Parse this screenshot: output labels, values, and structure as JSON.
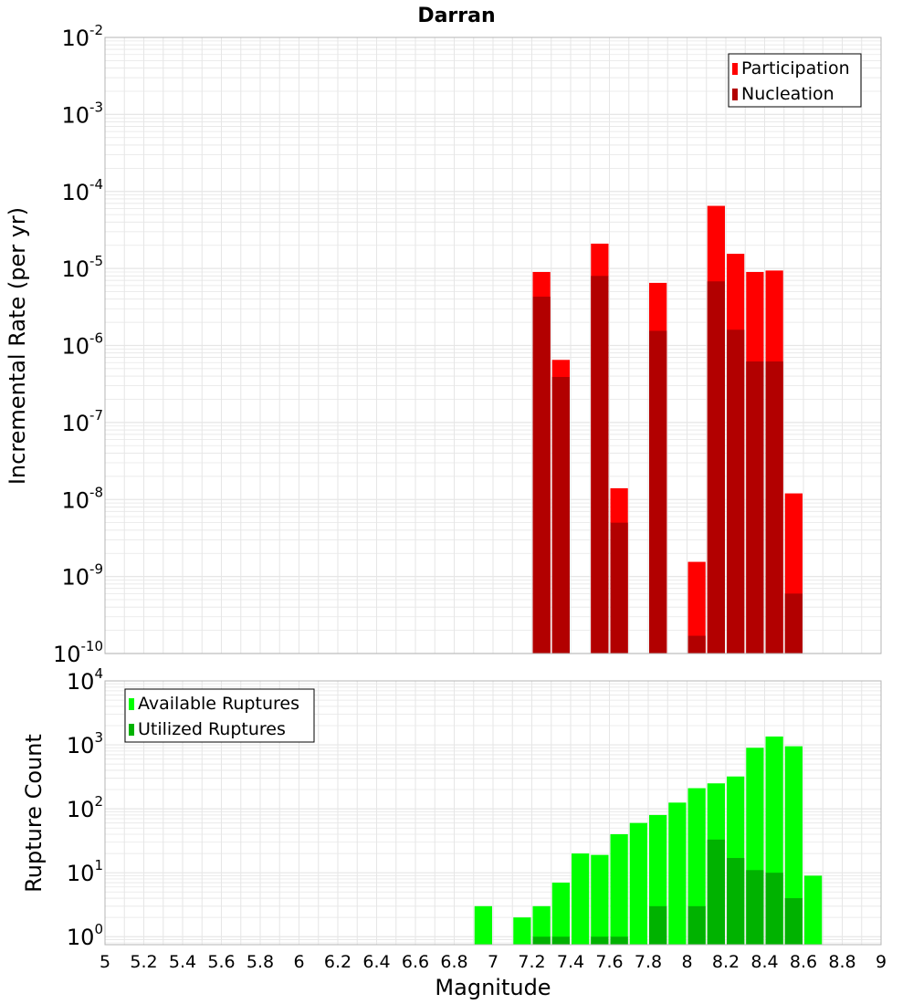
{
  "chart_data": [
    {
      "type": "bar",
      "title": "Darran",
      "ylabel": "Incremental Rate (per yr)",
      "xlabel": "",
      "yscale": "log",
      "ylim": [
        1e-10,
        0.01
      ],
      "xlim": [
        5,
        9
      ],
      "grid": true,
      "legend_position": "top-right",
      "bin_width": 0.1,
      "series": [
        {
          "name": "Participation",
          "color": "#ff0000",
          "points": [
            {
              "x": 7.25,
              "y": 9e-06
            },
            {
              "x": 7.35,
              "y": 6.5e-07
            },
            {
              "x": 7.55,
              "y": 2.1e-05
            },
            {
              "x": 7.65,
              "y": 1.4e-08
            },
            {
              "x": 7.85,
              "y": 6.5e-06
            },
            {
              "x": 8.05,
              "y": 1.55e-09
            },
            {
              "x": 8.15,
              "y": 6.5e-05
            },
            {
              "x": 8.25,
              "y": 1.55e-05
            },
            {
              "x": 8.35,
              "y": 9e-06
            },
            {
              "x": 8.45,
              "y": 9.4e-06
            },
            {
              "x": 8.55,
              "y": 1.2e-08
            }
          ]
        },
        {
          "name": "Nucleation",
          "color": "#b20000",
          "points": [
            {
              "x": 7.25,
              "y": 4.3e-06
            },
            {
              "x": 7.35,
              "y": 3.9e-07
            },
            {
              "x": 7.55,
              "y": 8e-06
            },
            {
              "x": 7.65,
              "y": 5e-09
            },
            {
              "x": 7.85,
              "y": 1.55e-06
            },
            {
              "x": 8.05,
              "y": 1.7e-10
            },
            {
              "x": 8.15,
              "y": 6.8e-06
            },
            {
              "x": 8.25,
              "y": 1.6e-06
            },
            {
              "x": 8.35,
              "y": 6.2e-07
            },
            {
              "x": 8.45,
              "y": 6.2e-07
            },
            {
              "x": 8.55,
              "y": 6e-10
            }
          ]
        }
      ],
      "y_ticks": [
        {
          "base": "10",
          "exp": "-2"
        },
        {
          "base": "10",
          "exp": "-3"
        },
        {
          "base": "10",
          "exp": "-4"
        },
        {
          "base": "10",
          "exp": "-5"
        },
        {
          "base": "10",
          "exp": "-6"
        },
        {
          "base": "10",
          "exp": "-7"
        },
        {
          "base": "10",
          "exp": "-8"
        },
        {
          "base": "10",
          "exp": "-9"
        },
        {
          "base": "10",
          "exp": "-10"
        }
      ]
    },
    {
      "type": "bar",
      "title": "",
      "ylabel": "Rupture Count",
      "xlabel": "Magnitude",
      "yscale": "log",
      "ylim": [
        0.75,
        10000
      ],
      "xlim": [
        5,
        9
      ],
      "grid": true,
      "legend_position": "top-left",
      "bin_width": 0.1,
      "series": [
        {
          "name": "Available Ruptures",
          "color": "#00ff00",
          "points": [
            {
              "x": 6.95,
              "y": 3
            },
            {
              "x": 7.15,
              "y": 2
            },
            {
              "x": 7.25,
              "y": 3
            },
            {
              "x": 7.35,
              "y": 7
            },
            {
              "x": 7.45,
              "y": 20
            },
            {
              "x": 7.55,
              "y": 19
            },
            {
              "x": 7.65,
              "y": 40
            },
            {
              "x": 7.75,
              "y": 60
            },
            {
              "x": 7.85,
              "y": 80
            },
            {
              "x": 7.95,
              "y": 125
            },
            {
              "x": 8.05,
              "y": 210
            },
            {
              "x": 8.15,
              "y": 250
            },
            {
              "x": 8.25,
              "y": 320
            },
            {
              "x": 8.35,
              "y": 900
            },
            {
              "x": 8.45,
              "y": 1350
            },
            {
              "x": 8.55,
              "y": 950
            },
            {
              "x": 8.65,
              "y": 9
            }
          ]
        },
        {
          "name": "Utilized Ruptures",
          "color": "#00b200",
          "points": [
            {
              "x": 7.25,
              "y": 1
            },
            {
              "x": 7.35,
              "y": 1
            },
            {
              "x": 7.55,
              "y": 1
            },
            {
              "x": 7.65,
              "y": 1
            },
            {
              "x": 7.85,
              "y": 3
            },
            {
              "x": 8.05,
              "y": 3
            },
            {
              "x": 8.15,
              "y": 33
            },
            {
              "x": 8.25,
              "y": 17
            },
            {
              "x": 8.35,
              "y": 11
            },
            {
              "x": 8.45,
              "y": 10
            },
            {
              "x": 8.55,
              "y": 4
            }
          ]
        }
      ],
      "y_ticks": [
        {
          "base": "10",
          "exp": "4"
        },
        {
          "base": "10",
          "exp": "3"
        },
        {
          "base": "10",
          "exp": "2"
        },
        {
          "base": "10",
          "exp": "1"
        },
        {
          "base": "10",
          "exp": "0"
        }
      ],
      "x_tick_labels": [
        "5",
        "5.2",
        "5.4",
        "5.6",
        "5.8",
        "6",
        "6.2",
        "6.4",
        "6.6",
        "6.8",
        "7",
        "7.2",
        "7.4",
        "7.6",
        "7.8",
        "8",
        "8.2",
        "8.4",
        "8.6",
        "8.8",
        "9"
      ]
    }
  ],
  "style": {
    "plot_background": "#ffffff",
    "grid_color": "#e6e6e6",
    "frame_color": "#b4b4b4",
    "bar_gap_color": "#ffffff"
  }
}
